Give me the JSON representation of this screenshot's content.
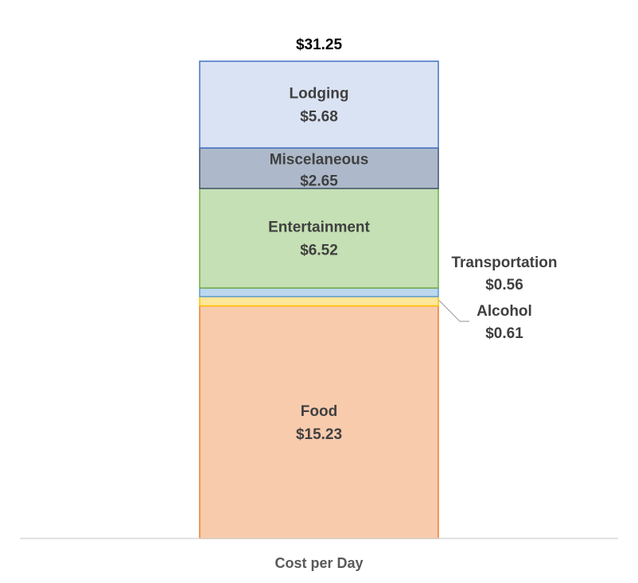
{
  "chart_data": {
    "type": "bar",
    "stacked": true,
    "categories": [
      "Cost per Day"
    ],
    "total": {
      "value": 31.25,
      "label": "$31.25"
    },
    "series": [
      {
        "name": "Food",
        "values": [
          15.23
        ],
        "value_label": "$15.23",
        "fill": "#F8CBAD",
        "stroke": "#ED7D31"
      },
      {
        "name": "Alcohol",
        "values": [
          0.61
        ],
        "value_label": "$0.61",
        "fill": "#FFE699",
        "stroke": "#FFC000"
      },
      {
        "name": "Transportation",
        "values": [
          0.56
        ],
        "value_label": "$0.56",
        "fill": "#BDD7EE",
        "stroke": "#5B9BD5"
      },
      {
        "name": "Entertainment",
        "values": [
          6.52
        ],
        "value_label": "$6.52",
        "fill": "#C5E0B4",
        "stroke": "#70AD47"
      },
      {
        "name": "Miscelaneous",
        "values": [
          2.65
        ],
        "value_label": "$2.65",
        "fill": "#ADB9CA",
        "stroke": "#44546A"
      },
      {
        "name": "Lodging",
        "values": [
          5.68
        ],
        "value_label": "$5.68",
        "fill": "#DAE3F3",
        "stroke": "#4472C4"
      }
    ],
    "ylim": [
      0,
      31.25
    ],
    "grid": false,
    "legend": "none",
    "xlabel": "",
    "ylabel": "",
    "title": ""
  }
}
